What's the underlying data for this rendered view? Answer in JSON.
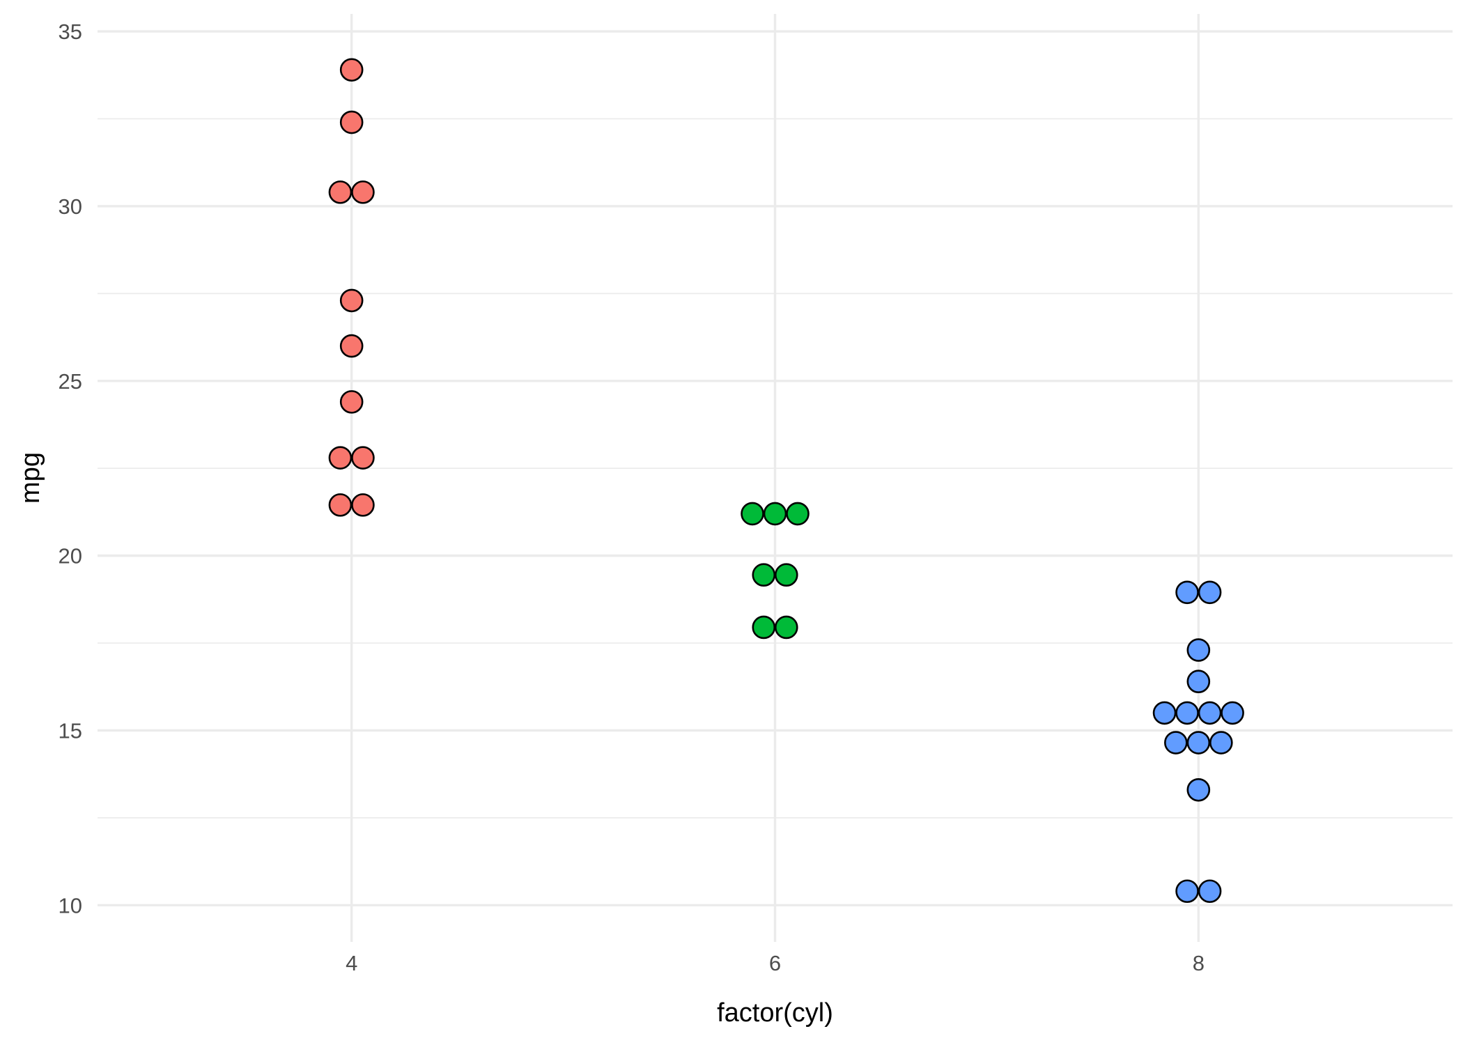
{
  "chart_data": {
    "type": "dotplot",
    "xlabel": "factor(cyl)",
    "ylabel": "mpg",
    "x_ticks": [
      "4",
      "6",
      "8"
    ],
    "y_ticks": [
      "10",
      "15",
      "20",
      "25",
      "30",
      "35"
    ],
    "ylim": [
      8.95,
      35.5
    ],
    "xlim": [
      2.8,
      9.2
    ],
    "grid": true,
    "legend": "none",
    "groups": [
      {
        "category": "4",
        "color": "#F8766D",
        "bins": [
          {
            "mpg": 33.9,
            "count": 1
          },
          {
            "mpg": 32.4,
            "count": 1
          },
          {
            "mpg": 30.4,
            "count": 2
          },
          {
            "mpg": 27.3,
            "count": 1
          },
          {
            "mpg": 26.0,
            "count": 1
          },
          {
            "mpg": 24.4,
            "count": 1
          },
          {
            "mpg": 22.8,
            "count": 2
          },
          {
            "mpg": 21.45,
            "count": 2
          }
        ]
      },
      {
        "category": "6",
        "color": "#00BA38",
        "bins": [
          {
            "mpg": 21.2,
            "count": 3
          },
          {
            "mpg": 19.45,
            "count": 2
          },
          {
            "mpg": 17.95,
            "count": 2
          }
        ]
      },
      {
        "category": "8",
        "color": "#619CFF",
        "bins": [
          {
            "mpg": 18.95,
            "count": 2
          },
          {
            "mpg": 17.3,
            "count": 1
          },
          {
            "mpg": 16.4,
            "count": 1
          },
          {
            "mpg": 15.5,
            "count": 4
          },
          {
            "mpg": 14.65,
            "count": 3
          },
          {
            "mpg": 13.3,
            "count": 1
          },
          {
            "mpg": 10.4,
            "count": 2
          }
        ]
      }
    ]
  }
}
